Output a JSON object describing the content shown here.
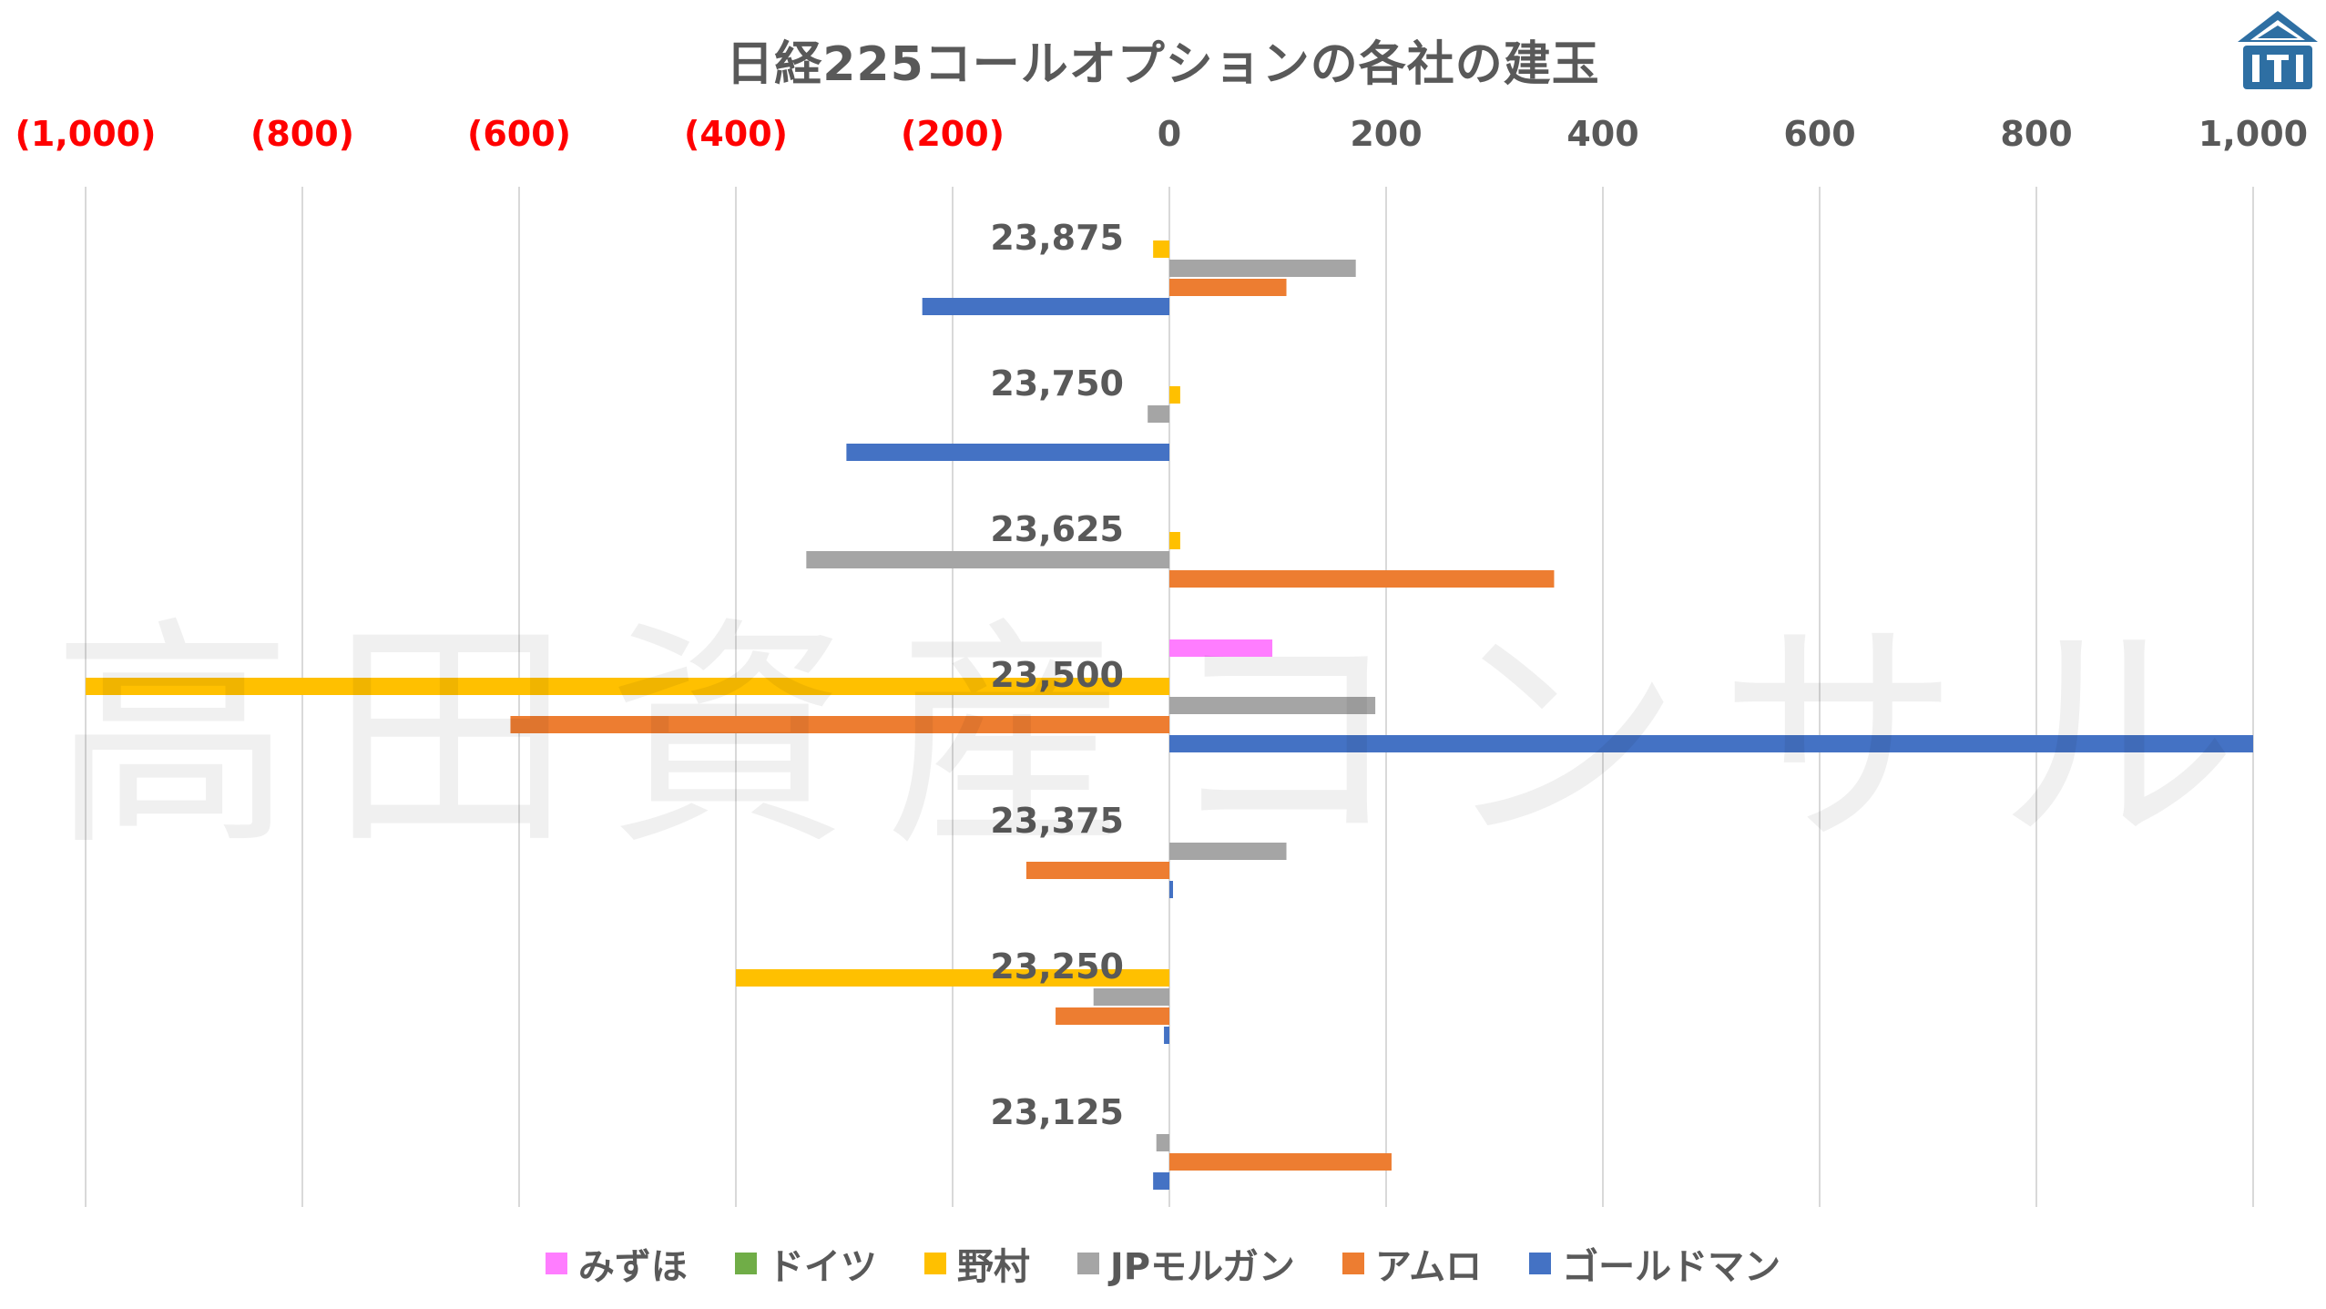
{
  "chart_data": {
    "type": "bar",
    "orientation": "horizontal",
    "title": "日経225コールオプションの各社の建玉",
    "watermark": "高田資産コンサル",
    "categories": [
      "23,875",
      "23,750",
      "23,625",
      "23,500",
      "23,375",
      "23,250",
      "23,125"
    ],
    "xlim": [
      -1000,
      1000
    ],
    "x_ticks": [
      -1000,
      -800,
      -600,
      -400,
      -200,
      0,
      200,
      400,
      600,
      800,
      1000
    ],
    "x_tick_labels": [
      "(1,000)",
      "(800)",
      "(600)",
      "(400)",
      "(200)",
      "0",
      "200",
      "400",
      "600",
      "800",
      "1,000"
    ],
    "negative_tick_color": "#ff0000",
    "positive_tick_color": "#595959",
    "grid": true,
    "legend_position": "bottom",
    "series": [
      {
        "name": "みずほ",
        "color": "#ff7dff",
        "values": [
          0,
          0,
          0,
          95,
          0,
          0,
          0
        ]
      },
      {
        "name": "ドイツ",
        "color": "#70ad47",
        "values": [
          0,
          0,
          0,
          0,
          0,
          0,
          0
        ]
      },
      {
        "name": "野村",
        "color": "#ffc000",
        "values": [
          -15,
          10,
          10,
          -1000,
          0,
          -400,
          0
        ]
      },
      {
        "name": "JPモルガン",
        "color": "#a5a5a5",
        "values": [
          172,
          -20,
          -335,
          190,
          108,
          -70,
          -12
        ]
      },
      {
        "name": "アムロ",
        "color": "#ed7d31",
        "values": [
          108,
          0,
          355,
          -608,
          -132,
          -105,
          205
        ]
      },
      {
        "name": "ゴールドマン",
        "color": "#4472c4",
        "values": [
          -228,
          -298,
          0,
          1000,
          3,
          -5,
          -15
        ]
      }
    ]
  }
}
